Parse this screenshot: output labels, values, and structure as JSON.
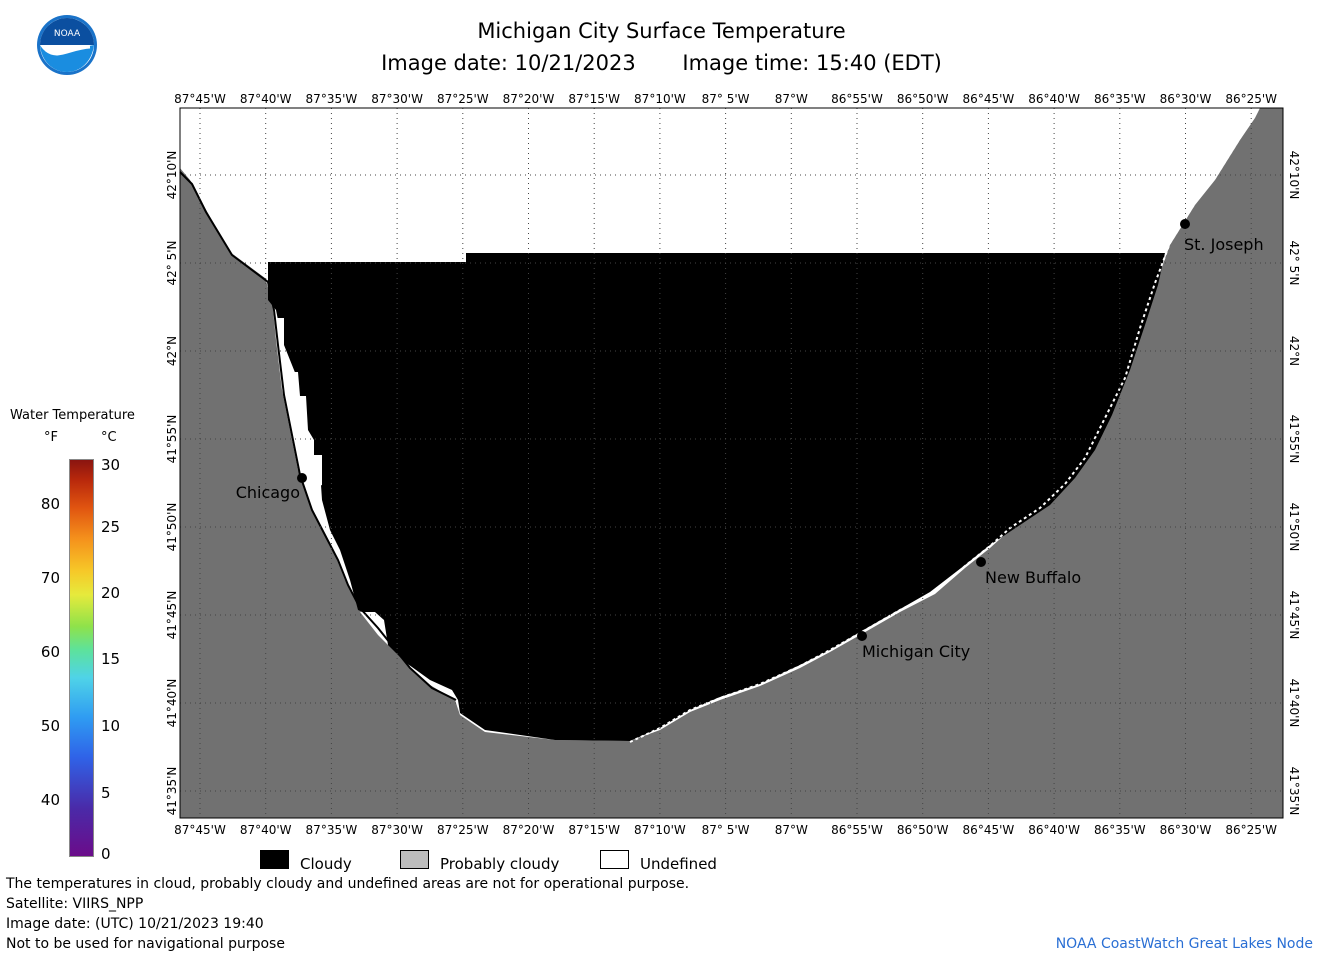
{
  "header": {
    "title": "Michigan City Surface Temperature",
    "image_date": "Image date: 10/21/2023",
    "image_time": "Image time: 15:40 (EDT)",
    "logo_text": "NOAA"
  },
  "map": {
    "lon_labels": [
      "87°45'W",
      "87°40'W",
      "87°35'W",
      "87°30'W",
      "87°25'W",
      "87°20'W",
      "87°15'W",
      "87°10'W",
      "87° 5'W",
      "87°W",
      "86°55'W",
      "86°50'W",
      "86°45'W",
      "86°40'W",
      "86°35'W",
      "86°30'W",
      "86°25'W"
    ],
    "lat_labels": [
      "42°10'N",
      "42° 5'N",
      "42°N",
      "41°55'N",
      "41°50'N",
      "41°45'N",
      "41°40'N",
      "41°35'N"
    ],
    "cities": [
      {
        "name": "St. Joseph"
      },
      {
        "name": "Chicago"
      },
      {
        "name": "New Buffalo"
      },
      {
        "name": "Michigan City"
      }
    ],
    "colors": {
      "land": "#717171",
      "cloudy": "#000000",
      "undefined": "#ffffff",
      "grid": "#555555"
    }
  },
  "legend": {
    "title": "Water Temperature",
    "unit_f": "°F",
    "unit_c": "°C",
    "f_ticks": [
      "80",
      "70",
      "60",
      "50",
      "40"
    ],
    "c_ticks": [
      "30",
      "25",
      "20",
      "15",
      "10",
      "5",
      "0"
    ]
  },
  "key": {
    "cloudy": "Cloudy",
    "probably_cloudy": "Probably cloudy",
    "undefined": "Undefined"
  },
  "footer": {
    "note": "The temperatures in cloud, probably cloudy and undefined areas are not for operational purpose.",
    "satellite": "Satellite: VIIRS_NPP",
    "image_date_utc": "Image date: (UTC) 10/21/2023  19:40",
    "nav_warning": "Not to be used for navigational purpose",
    "credit": "NOAA CoastWatch Great Lakes Node"
  }
}
